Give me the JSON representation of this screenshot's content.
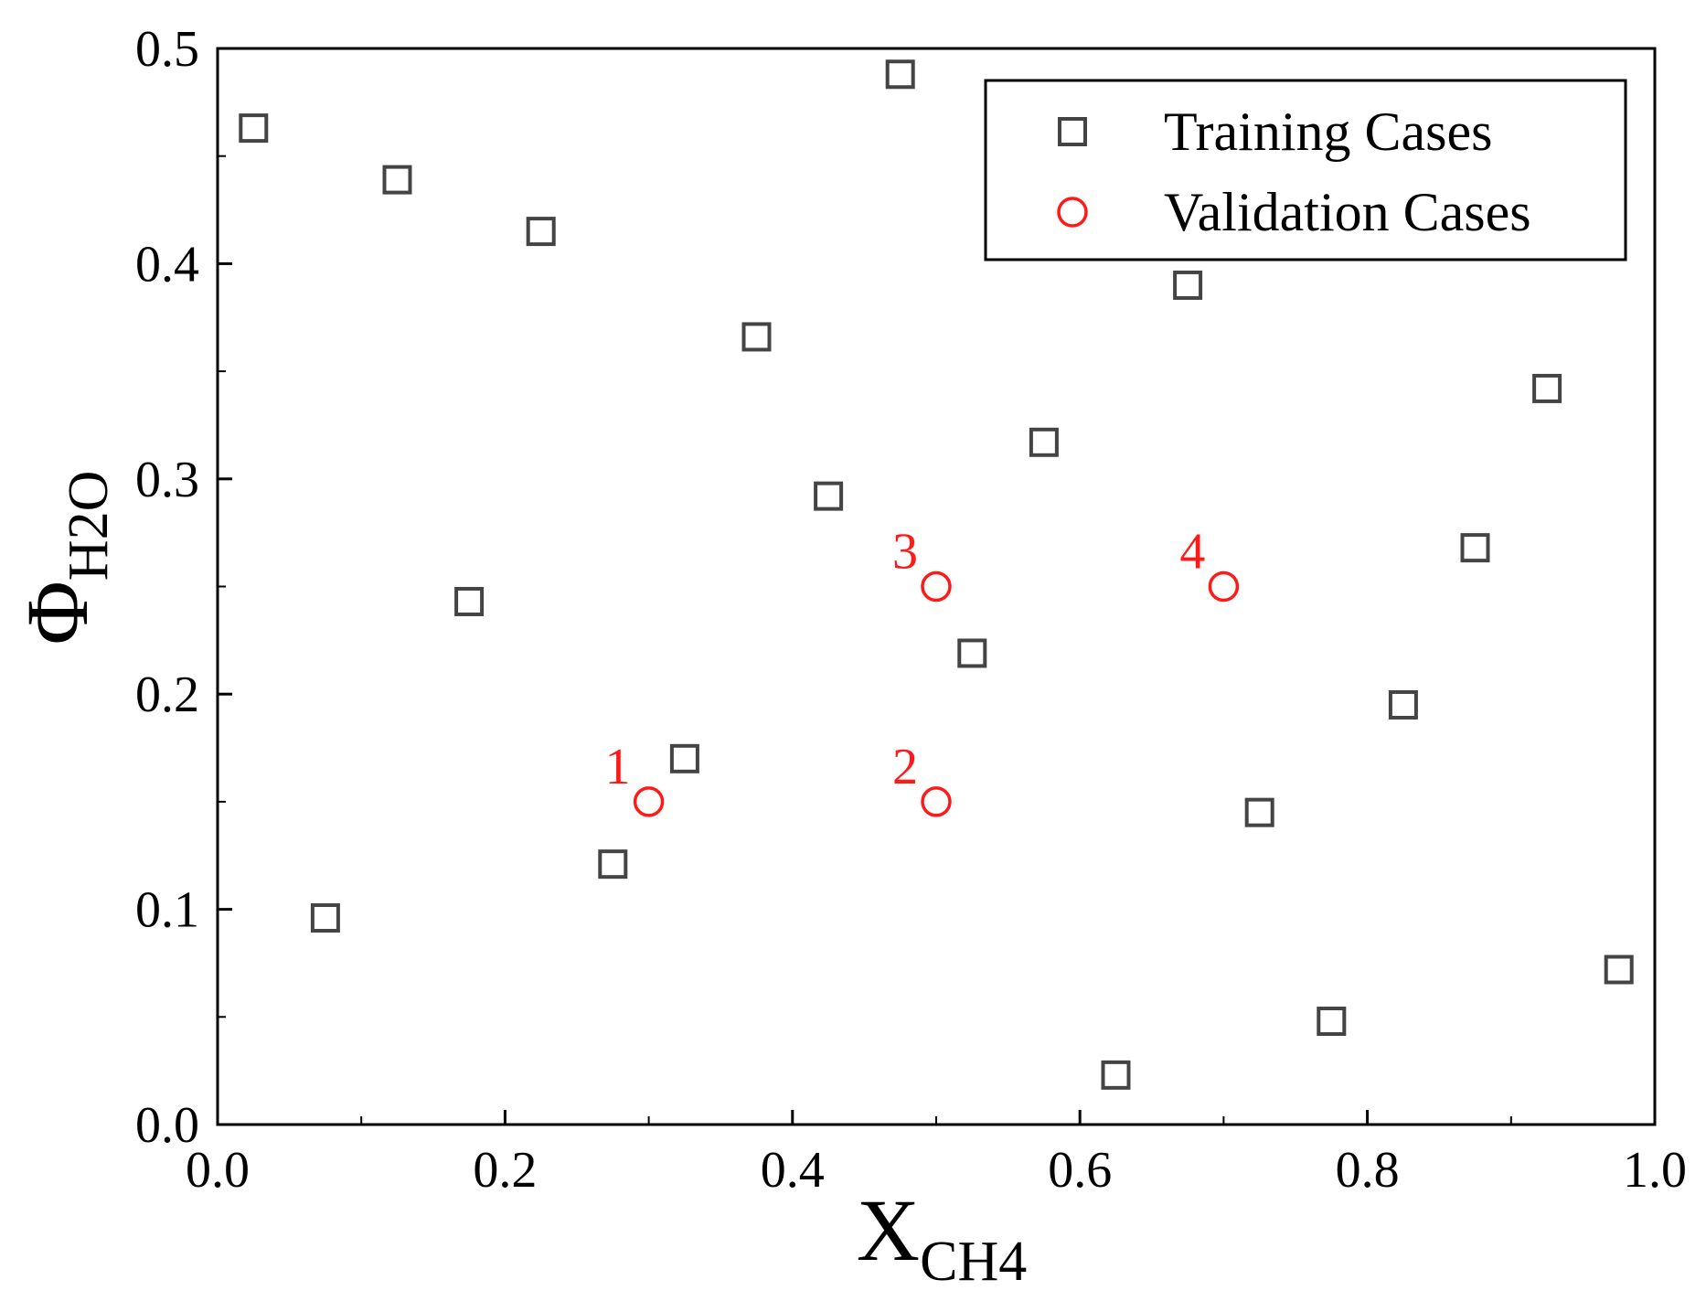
{
  "chart_data": {
    "type": "scatter",
    "title": "",
    "xlabel": {
      "main": "X",
      "sub": "CH4"
    },
    "ylabel": {
      "main": "Φ",
      "sub": "H2O"
    },
    "xlim": [
      0.0,
      1.0
    ],
    "ylim": [
      0.0,
      0.5
    ],
    "xticks": [
      "0.0",
      "0.2",
      "0.4",
      "0.6",
      "0.8",
      "1.0"
    ],
    "yticks": [
      "0.0",
      "0.1",
      "0.2",
      "0.3",
      "0.4",
      "0.5"
    ],
    "grid": false,
    "legend_position": "top-right",
    "series": [
      {
        "name": "Training Cases",
        "marker": "square",
        "color": "#444444",
        "points": [
          [
            0.025,
            0.463
          ],
          [
            0.075,
            0.096
          ],
          [
            0.125,
            0.439
          ],
          [
            0.175,
            0.243
          ],
          [
            0.225,
            0.415
          ],
          [
            0.275,
            0.121
          ],
          [
            0.325,
            0.17
          ],
          [
            0.375,
            0.366
          ],
          [
            0.425,
            0.292
          ],
          [
            0.475,
            0.488
          ],
          [
            0.525,
            0.219
          ],
          [
            0.575,
            0.317
          ],
          [
            0.625,
            0.023
          ],
          [
            0.675,
            0.39
          ],
          [
            0.725,
            0.145
          ],
          [
            0.775,
            0.048
          ],
          [
            0.825,
            0.195
          ],
          [
            0.875,
            0.268
          ],
          [
            0.925,
            0.342
          ],
          [
            0.975,
            0.072
          ]
        ]
      },
      {
        "name": "Validation Cases",
        "marker": "circle",
        "color": "#ff1a1a",
        "points": [
          [
            0.3,
            0.15
          ],
          [
            0.5,
            0.15
          ],
          [
            0.5,
            0.25
          ],
          [
            0.7,
            0.25
          ]
        ],
        "labels": [
          "1",
          "2",
          "3",
          "4"
        ]
      }
    ]
  }
}
